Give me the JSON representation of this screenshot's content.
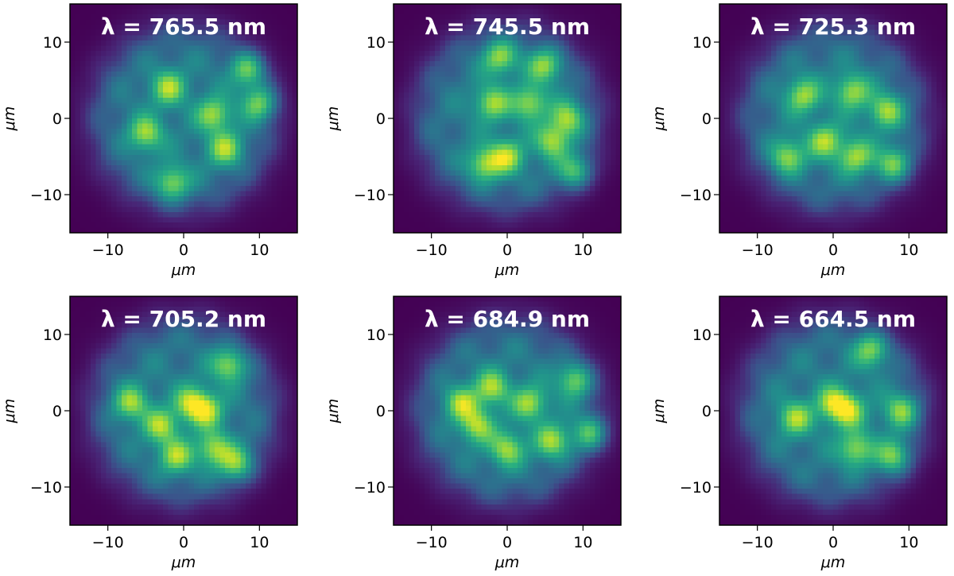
{
  "colormap": "viridis",
  "chart_data": [
    {
      "type": "heatmap",
      "title": "λ = 765.5 nm",
      "xlabel": "μm",
      "ylabel": "μm",
      "xlim": [
        -15,
        15
      ],
      "ylim": [
        -15,
        15
      ],
      "xticks": [
        -10,
        0,
        10
      ],
      "yticks": [
        -10,
        0,
        10
      ],
      "xtick_labels": [
        "−10",
        "0",
        "10"
      ],
      "ytick_labels": [
        "−10",
        "0",
        "10"
      ],
      "grid": false,
      "hotspots": [
        [
          4,
          0.5
        ],
        [
          8.5,
          6.5
        ],
        [
          -5,
          -2
        ],
        [
          10,
          2
        ],
        [
          5.5,
          -4
        ],
        [
          -1.5,
          -8.5
        ],
        [
          -2,
          4
        ]
      ]
    },
    {
      "type": "heatmap",
      "title": "λ = 745.5 nm",
      "xlabel": "μm",
      "ylabel": "μm",
      "xlim": [
        -15,
        15
      ],
      "ylim": [
        -15,
        15
      ],
      "xticks": [
        -10,
        0,
        10
      ],
      "yticks": [
        -10,
        0,
        10
      ],
      "xtick_labels": [
        "−10",
        "0",
        "10"
      ],
      "ytick_labels": [
        "−10",
        "0",
        "10"
      ],
      "grid": false,
      "hotspots": [
        [
          -2,
          2
        ],
        [
          3,
          2
        ],
        [
          8,
          0
        ],
        [
          -3,
          -6
        ],
        [
          9,
          -7
        ],
        [
          0,
          -5
        ],
        [
          5,
          7
        ],
        [
          -1,
          8
        ],
        [
          6,
          -3
        ]
      ]
    },
    {
      "type": "heatmap",
      "title": "λ = 725.3 nm",
      "xlabel": "μm",
      "ylabel": "μm",
      "xlim": [
        -15,
        15
      ],
      "ylim": [
        -15,
        15
      ],
      "xticks": [
        -10,
        0,
        10
      ],
      "yticks": [
        -10,
        0,
        10
      ],
      "xtick_labels": [
        "−10",
        "0",
        "10"
      ],
      "ytick_labels": [
        "−10",
        "0",
        "10"
      ],
      "grid": false,
      "hotspots": [
        [
          2.5,
          3.5
        ],
        [
          -4,
          3
        ],
        [
          7,
          1
        ],
        [
          -1,
          -3
        ],
        [
          8,
          -6
        ],
        [
          3,
          -5
        ],
        [
          -6,
          -5
        ]
      ]
    },
    {
      "type": "heatmap",
      "title": "λ = 705.2 nm",
      "xlabel": "μm",
      "ylabel": "μm",
      "xlim": [
        -15,
        15
      ],
      "ylim": [
        -15,
        15
      ],
      "xticks": [
        -10,
        0,
        10
      ],
      "yticks": [
        -10,
        0,
        10
      ],
      "xtick_labels": [
        "−10",
        "0",
        "10"
      ],
      "ytick_labels": [
        "−10",
        "0",
        "10"
      ],
      "grid": false,
      "hotspots": [
        [
          1,
          1
        ],
        [
          3,
          0
        ],
        [
          -3,
          -2
        ],
        [
          7,
          -7
        ],
        [
          -7,
          1
        ],
        [
          6,
          6
        ],
        [
          4,
          -5
        ],
        [
          -1,
          -6
        ]
      ]
    },
    {
      "type": "heatmap",
      "title": "λ = 684.9 nm",
      "xlabel": "μm",
      "ylabel": "μm",
      "xlim": [
        -15,
        15
      ],
      "ylim": [
        -15,
        15
      ],
      "xticks": [
        -10,
        0,
        10
      ],
      "yticks": [
        -10,
        0,
        10
      ],
      "xtick_labels": [
        "−10",
        "0",
        "10"
      ],
      "ytick_labels": [
        "−10",
        "0",
        "10"
      ],
      "grid": false,
      "hotspots": [
        [
          -2,
          3
        ],
        [
          3,
          1
        ],
        [
          11,
          -3
        ],
        [
          0,
          -5
        ],
        [
          6,
          -4
        ],
        [
          -4,
          -2
        ],
        [
          9,
          4
        ],
        [
          -6,
          1
        ]
      ]
    },
    {
      "type": "heatmap",
      "title": "λ = 664.5 nm",
      "xlabel": "μm",
      "ylabel": "μm",
      "xlim": [
        -15,
        15
      ],
      "ylim": [
        -15,
        15
      ],
      "xticks": [
        -10,
        0,
        10
      ],
      "yticks": [
        -10,
        0,
        10
      ],
      "xtick_labels": [
        "−10",
        "0",
        "10"
      ],
      "ytick_labels": [
        "−10",
        "0",
        "10"
      ],
      "grid": false,
      "hotspots": [
        [
          0,
          1
        ],
        [
          2,
          0
        ],
        [
          9,
          0
        ],
        [
          5,
          8
        ],
        [
          8,
          -6
        ],
        [
          -5,
          -1
        ],
        [
          3,
          -5
        ]
      ]
    }
  ]
}
